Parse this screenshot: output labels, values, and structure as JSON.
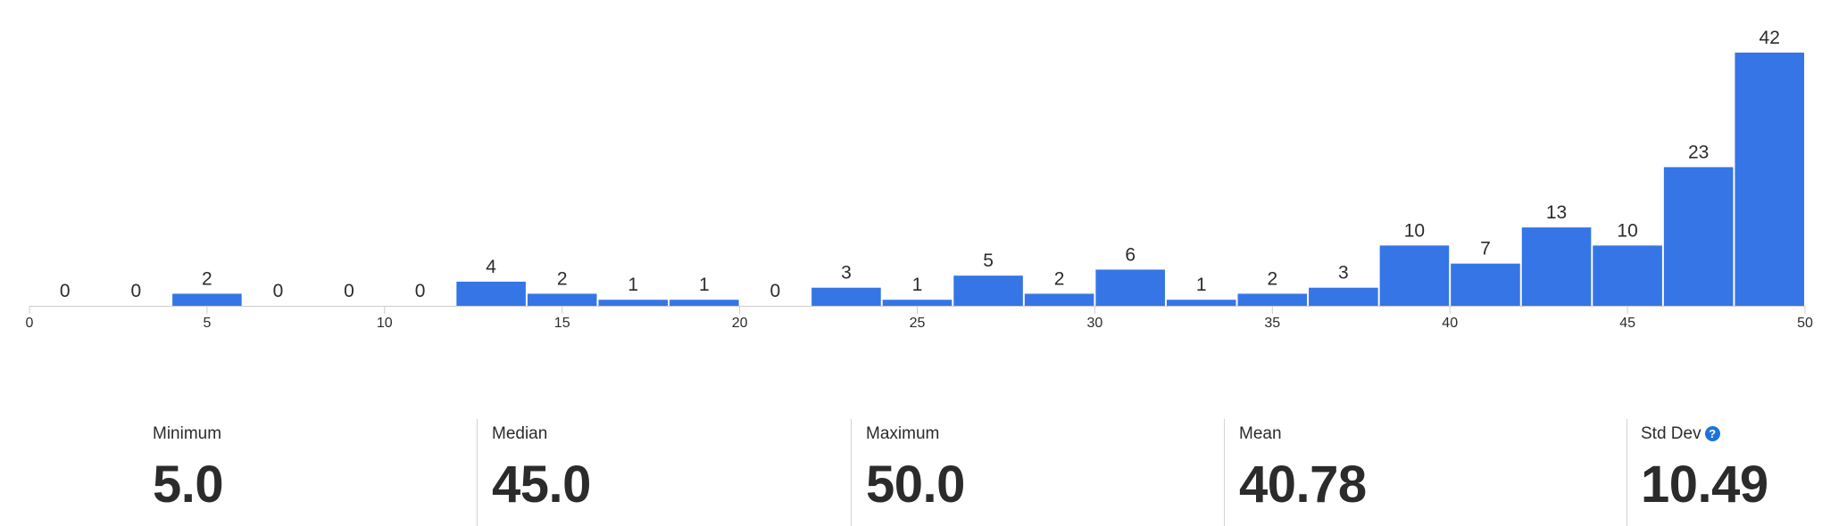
{
  "chart_data": {
    "type": "bar",
    "bin_edges": [
      0,
      2,
      4,
      6,
      8,
      10,
      12,
      14,
      16,
      18,
      20,
      22,
      24,
      26,
      28,
      30,
      32,
      34,
      36,
      38,
      40,
      42,
      44,
      46,
      48,
      50
    ],
    "values": [
      0,
      0,
      2,
      0,
      0,
      0,
      4,
      2,
      1,
      1,
      0,
      3,
      1,
      5,
      2,
      6,
      1,
      2,
      3,
      10,
      7,
      13,
      10,
      23,
      42
    ],
    "xticks": [
      0,
      5,
      10,
      15,
      20,
      25,
      30,
      35,
      40,
      45,
      50
    ],
    "xlim": [
      0,
      50
    ],
    "ymax": 42,
    "title": "",
    "xlabel": "",
    "ylabel": "",
    "bar_color": "#3575e6",
    "grid": false
  },
  "stats": {
    "min": {
      "label": "Minimum",
      "value": "5.0"
    },
    "median": {
      "label": "Median",
      "value": "45.0"
    },
    "max": {
      "label": "Maximum",
      "value": "50.0"
    },
    "mean": {
      "label": "Mean",
      "value": "40.78"
    },
    "stddev": {
      "label": "Std Dev",
      "value": "10.49",
      "help_icon": "question-circle-icon",
      "help_glyph": "?"
    }
  }
}
